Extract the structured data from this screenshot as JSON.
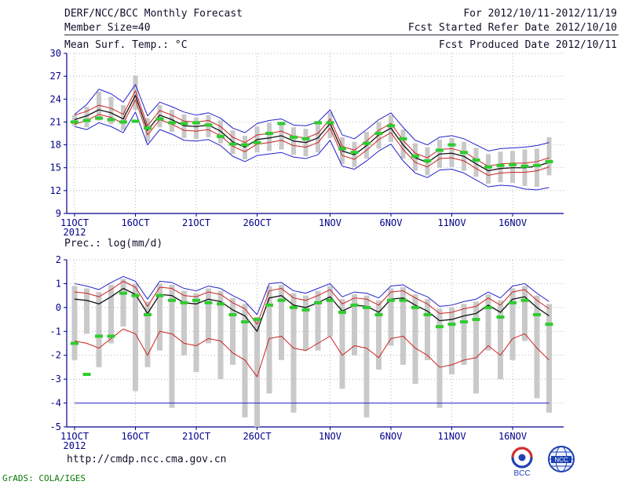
{
  "header": {
    "title": "DERF/NCC/BCC Monthly Forecast",
    "member_size": "Member Size=40",
    "for_range": "For 2012/10/11-2012/11/19",
    "refer_date": "Fcst Started Refer Date 2012/10/10",
    "produced_date": "Fcst Produced Date 2012/10/11"
  },
  "footer": {
    "url": "http://cmdp.ncc.cma.gov.cn",
    "signature": "GrADS: COLA/IGES",
    "logo_left": "BCC",
    "logo_right": "NCC"
  },
  "colors": {
    "axis": "#00008b",
    "grid": "#9a9aa6",
    "envelope": "#2222cc",
    "quartile": "#cc2222",
    "mean": "#111111",
    "obs": "#2ecc2e",
    "spread": "#c9c9c9"
  },
  "x_axis": {
    "tick_labels": [
      "11OCT",
      "16OCT",
      "21OCT",
      "26OCT",
      "1NOV",
      "6NOV",
      "11NOV",
      "16NOV"
    ],
    "tick_indices": [
      0,
      5,
      10,
      15,
      21,
      26,
      31,
      36
    ],
    "year": "2012",
    "n_days": 40
  },
  "chart_data": [
    {
      "type": "line",
      "title": "Mean Surf. Temp.: °C",
      "ylim": [
        9,
        30
      ],
      "yticks": [
        9,
        12,
        15,
        18,
        21,
        24,
        27,
        30
      ],
      "grid": true,
      "bar_half": 3,
      "series": {
        "spread": {
          "low": [
            20.5,
            20.3,
            21.2,
            20.7,
            19.9,
            22.6,
            18.4,
            20.3,
            19.7,
            18.9,
            18.8,
            19.0,
            18.2,
            16.8,
            16.1,
            17.0,
            17.2,
            17.4,
            16.7,
            16.5,
            17.0,
            18.9,
            15.5,
            15.1,
            16.2,
            17.5,
            18.4,
            16.2,
            14.6,
            14.0,
            15.0,
            15.1,
            14.6,
            13.8,
            12.9,
            13.1,
            13.0,
            12.6,
            12.5,
            14.0
          ],
          "high": [
            21.9,
            23.0,
            25.0,
            24.3,
            23.2,
            27.1,
            21.5,
            23.2,
            22.6,
            22.0,
            21.6,
            21.9,
            21.2,
            19.9,
            19.2,
            20.4,
            20.9,
            21.0,
            20.3,
            20.1,
            20.7,
            22.3,
            19.0,
            18.4,
            19.7,
            21.0,
            21.9,
            20.0,
            18.2,
            17.7,
            18.7,
            18.9,
            18.4,
            17.6,
            16.8,
            17.1,
            17.2,
            17.4,
            17.5,
            19.0
          ]
        },
        "max": [
          22.0,
          23.3,
          25.3,
          24.7,
          23.6,
          25.9,
          21.8,
          23.6,
          23.0,
          22.3,
          21.9,
          22.2,
          21.5,
          20.2,
          19.6,
          20.8,
          21.2,
          21.4,
          20.6,
          20.5,
          21.0,
          22.6,
          19.3,
          18.8,
          20.0,
          21.3,
          22.2,
          20.3,
          18.6,
          18.0,
          19.0,
          19.2,
          18.8,
          18.0,
          17.2,
          17.5,
          17.6,
          17.7,
          17.9,
          18.3
        ],
        "min": [
          20.4,
          20.0,
          20.9,
          20.4,
          19.6,
          22.3,
          18.0,
          20.0,
          19.4,
          18.6,
          18.5,
          18.7,
          17.9,
          16.5,
          15.8,
          16.6,
          16.8,
          17.0,
          16.4,
          16.2,
          16.7,
          18.6,
          15.2,
          14.8,
          15.9,
          17.2,
          18.1,
          15.9,
          14.3,
          13.7,
          14.7,
          14.8,
          14.3,
          13.4,
          12.5,
          12.7,
          12.6,
          12.2,
          12.1,
          12.4
        ],
        "p75": [
          21.9,
          22.4,
          23.2,
          22.8,
          22.0,
          25.1,
          20.5,
          22.5,
          21.9,
          21.1,
          21.0,
          21.2,
          20.4,
          19.0,
          18.3,
          19.3,
          19.5,
          19.8,
          19.1,
          18.9,
          19.5,
          21.4,
          17.8,
          17.3,
          18.5,
          19.9,
          20.8,
          18.6,
          16.9,
          16.3,
          17.4,
          17.5,
          17.1,
          16.1,
          15.2,
          15.5,
          15.6,
          15.6,
          15.8,
          16.3
        ],
        "p25": [
          20.7,
          21.2,
          22.0,
          21.6,
          20.8,
          23.9,
          19.3,
          21.3,
          20.7,
          19.9,
          19.8,
          20.0,
          19.2,
          17.8,
          17.1,
          18.1,
          18.3,
          18.6,
          17.9,
          17.7,
          18.3,
          20.2,
          16.6,
          16.1,
          17.3,
          18.7,
          19.6,
          17.4,
          15.7,
          15.1,
          16.2,
          16.3,
          15.9,
          14.9,
          14.0,
          14.3,
          14.4,
          14.4,
          14.6,
          15.1
        ],
        "mean": [
          21.3,
          21.8,
          22.6,
          22.2,
          21.4,
          24.5,
          19.9,
          21.9,
          21.3,
          20.5,
          20.4,
          20.6,
          19.8,
          18.4,
          17.7,
          18.7,
          18.9,
          19.2,
          18.5,
          18.3,
          18.9,
          20.8,
          17.2,
          16.7,
          17.9,
          19.3,
          20.2,
          18.0,
          16.3,
          15.7,
          16.8,
          16.9,
          16.5,
          15.5,
          14.6,
          14.9,
          15.0,
          15.0,
          15.2,
          15.7
        ],
        "obs": [
          21.0,
          21.2,
          21.5,
          21.3,
          21.0,
          21.1,
          20.2,
          21.4,
          20.9,
          20.8,
          20.9,
          20.6,
          19.1,
          18.1,
          18.0,
          18.3,
          19.5,
          20.8,
          19.0,
          18.8,
          20.9,
          20.9,
          17.5,
          17.0,
          18.2,
          19.5,
          20.5,
          18.8,
          16.5,
          15.9,
          17.3,
          18.0,
          17.0,
          16.0,
          15.1,
          15.3,
          15.4,
          15.2,
          15.3,
          15.8
        ]
      }
    },
    {
      "type": "line",
      "title": "Prec.: log(mm/d)",
      "ylim": [
        -5,
        2
      ],
      "yticks": [
        -5,
        -4,
        -3,
        -2,
        -1,
        0,
        1,
        2
      ],
      "grid": true,
      "bar_half": 3.5,
      "series": {
        "spread": {
          "low": [
            -2.2,
            -1.1,
            -2.5,
            -1.5,
            -0.8,
            -3.5,
            -2.5,
            -1.8,
            -4.2,
            -2.0,
            -2.7,
            -1.5,
            -3.0,
            -2.4,
            -4.6,
            -5.0,
            -3.6,
            -2.2,
            -4.4,
            -1.8,
            -1.8,
            -1.2,
            -3.4,
            -2.0,
            -4.6,
            -2.6,
            -1.6,
            -2.4,
            -3.2,
            -2.2,
            -4.2,
            -2.8,
            -2.4,
            -3.6,
            -1.8,
            -3.0,
            -2.2,
            -1.4,
            -3.8,
            -4.4
          ],
          "high": [
            0.9,
            0.8,
            0.65,
            0.95,
            1.2,
            1.0,
            0.25,
            1.0,
            0.95,
            0.7,
            0.6,
            0.8,
            0.7,
            0.4,
            0.15,
            -0.4,
            0.9,
            0.95,
            0.6,
            0.5,
            0.7,
            0.9,
            0.35,
            0.55,
            0.5,
            0.3,
            0.8,
            0.85,
            0.55,
            0.35,
            -0.05,
            0.0,
            0.15,
            0.25,
            0.55,
            0.3,
            0.8,
            0.9,
            0.5,
            0.15
          ]
        },
        "max": [
          1.0,
          0.9,
          0.75,
          1.05,
          1.3,
          1.1,
          0.35,
          1.1,
          1.05,
          0.8,
          0.7,
          0.9,
          0.8,
          0.5,
          0.25,
          -0.3,
          1.0,
          1.05,
          0.7,
          0.6,
          0.8,
          1.0,
          0.45,
          0.65,
          0.6,
          0.4,
          0.9,
          0.95,
          0.65,
          0.45,
          0.05,
          0.1,
          0.25,
          0.35,
          0.65,
          0.4,
          0.9,
          1.0,
          0.6,
          0.25
        ],
        "min": [
          -4.0,
          -4.0,
          -4.0,
          -4.0,
          -4.0,
          -4.0,
          -4.0,
          -4.0,
          -4.0,
          -4.0,
          -4.0,
          -4.0,
          -4.0,
          -4.0,
          -4.0,
          -4.0,
          -4.0,
          -4.0,
          -4.0,
          -4.0,
          -4.0,
          -4.0,
          -4.0,
          -4.0,
          -4.0,
          -4.0,
          -4.0,
          -4.0,
          -4.0,
          -4.0,
          -4.0,
          -4.0,
          -4.0,
          -4.0,
          -4.0,
          -4.0,
          -4.0,
          -4.0,
          -4.0,
          -4.0
        ],
        "p75": [
          0.65,
          0.6,
          0.45,
          0.75,
          1.1,
          0.85,
          0.05,
          0.85,
          0.8,
          0.5,
          0.45,
          0.65,
          0.55,
          0.2,
          -0.05,
          -0.7,
          0.7,
          0.8,
          0.4,
          0.3,
          0.5,
          0.75,
          0.15,
          0.4,
          0.35,
          0.1,
          0.65,
          0.7,
          0.4,
          0.15,
          -0.25,
          -0.2,
          -0.05,
          0.05,
          0.4,
          0.1,
          0.65,
          0.75,
          0.3,
          -0.05
        ],
        "p25": [
          -1.4,
          -1.5,
          -1.7,
          -1.3,
          -0.9,
          -1.1,
          -2.0,
          -1.0,
          -1.1,
          -1.5,
          -1.6,
          -1.3,
          -1.4,
          -1.9,
          -2.2,
          -2.9,
          -1.3,
          -1.2,
          -1.7,
          -1.8,
          -1.5,
          -1.2,
          -2.0,
          -1.6,
          -1.7,
          -2.1,
          -1.3,
          -1.2,
          -1.7,
          -2.0,
          -2.5,
          -2.4,
          -2.2,
          -2.1,
          -1.6,
          -2.0,
          -1.3,
          -1.1,
          -1.7,
          -2.2
        ],
        "mean": [
          0.35,
          0.3,
          0.15,
          0.45,
          0.8,
          0.55,
          -0.25,
          0.55,
          0.5,
          0.2,
          0.15,
          0.35,
          0.25,
          -0.1,
          -0.35,
          -1.0,
          0.4,
          0.5,
          0.1,
          0.0,
          0.2,
          0.45,
          -0.15,
          0.1,
          0.05,
          -0.2,
          0.35,
          0.4,
          0.1,
          -0.15,
          -0.55,
          -0.5,
          -0.35,
          -0.25,
          0.1,
          -0.2,
          0.35,
          0.45,
          0.0,
          -0.35
        ],
        "obs": [
          -1.5,
          -2.8,
          -1.2,
          -1.2,
          0.6,
          0.5,
          -0.3,
          0.5,
          0.3,
          0.2,
          0.3,
          0.2,
          0.15,
          -0.3,
          -0.6,
          -0.5,
          0.1,
          0.3,
          0.0,
          -0.1,
          0.2,
          0.3,
          -0.2,
          0.1,
          0.0,
          -0.3,
          0.3,
          0.3,
          0.0,
          -0.3,
          -0.8,
          -0.7,
          -0.6,
          -0.5,
          0.0,
          -0.4,
          0.2,
          0.3,
          -0.3,
          -0.7
        ]
      }
    }
  ]
}
